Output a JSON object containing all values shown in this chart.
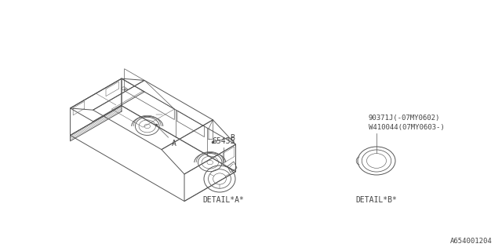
{
  "bg_color": "#ffffff",
  "line_color": "#555555",
  "text_color": "#444444",
  "part_number_A": "65435",
  "part_number_B_line1": "90371J(-07MY0602)",
  "part_number_B_line2": "W410044(07MY0603-)",
  "label_A": "A",
  "label_B": "B",
  "detail_A_label": "DETAIL*A*",
  "detail_B_label": "DETAIL*B*",
  "diagram_id": "A654001204",
  "font_size_part": 7,
  "font_size_detail": 7,
  "font_size_label": 7,
  "font_size_id": 6.5,
  "font_family": "monospace",
  "lw_body": 0.7,
  "lw_detail": 0.6
}
